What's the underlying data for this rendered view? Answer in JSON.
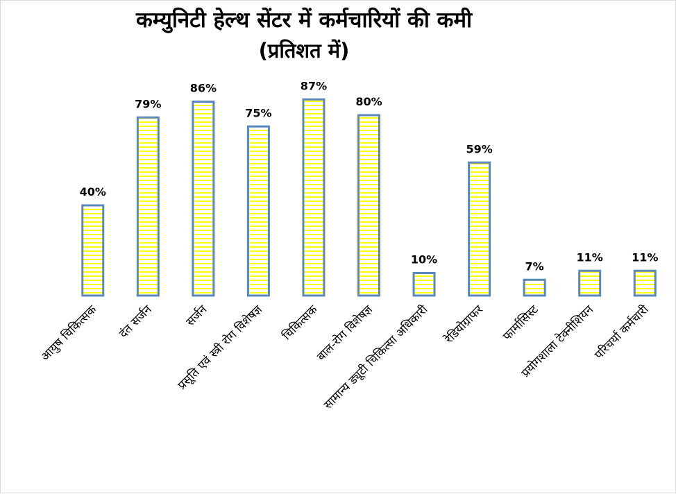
{
  "chart_data": {
    "type": "bar",
    "title": "कम्युनिटी हेल्थ सेंटर में कर्मचारियों की कमी",
    "subtitle": "(प्रतिशत में)",
    "categories": [
      "आयुष चिकित्सक",
      "दंत सर्जन",
      "सर्जन",
      "प्रसूति एवं स्त्री रोग विशेषज्ञ",
      "चिकित्सक",
      "बाल-रोग विशेषज्ञ",
      "सामान्य ड्यूटी चिकित्सा अधिकारी",
      "रेडियोग्राफर",
      "फार्मासिस्ट",
      "प्रयोगशाला टेक्नीशियन",
      "परिचर्या कर्मचारी"
    ],
    "values": [
      40,
      79,
      86,
      75,
      87,
      80,
      10,
      59,
      7,
      11,
      11
    ],
    "data_labels": [
      "40%",
      "79%",
      "86%",
      "75%",
      "87%",
      "80%",
      "10%",
      "59%",
      "7%",
      "11%",
      "11%"
    ],
    "xlabel": "",
    "ylabel": "",
    "ylim": [
      0,
      100
    ],
    "grid": false,
    "legend": "none",
    "colors": {
      "bar_fill": "#ffffff",
      "bar_stripe": "#ffff00",
      "bar_border": "#5b87b9"
    }
  }
}
